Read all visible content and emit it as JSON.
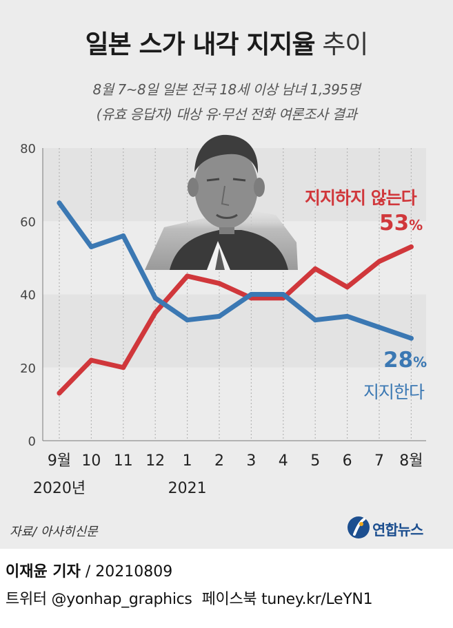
{
  "title": {
    "bold": "일본 스가 내각 지지율",
    "light": "추이"
  },
  "subtitle": {
    "line1": "8월 7~8일 일본 전국 18세 이상 남녀 1,395명",
    "line2": "(유효 응답자) 대상 유·무선 전화 여론조사 결과"
  },
  "labels": {
    "disapprove_name": "지지하지 않는다",
    "disapprove_pct": "53",
    "approve_pct": "28",
    "approve_name": "지지한다",
    "pct_sign": "%"
  },
  "colors": {
    "disapprove": "#d0373b",
    "approve": "#3b78b3",
    "background": "#ececec",
    "band": "#e3e3e3"
  },
  "chart_data": {
    "type": "line",
    "categories": [
      "9월",
      "10",
      "11",
      "12",
      "1",
      "2",
      "3",
      "4",
      "5",
      "6",
      "7",
      "8월"
    ],
    "year_labels": [
      {
        "index": 0,
        "label": "2020년"
      },
      {
        "index": 4,
        "label": "2021"
      }
    ],
    "y_ticks": [
      "0",
      "20",
      "40",
      "60",
      "80"
    ],
    "ylim": [
      0,
      80
    ],
    "grid": "vertical dotted lines at each month, alternating shaded bands",
    "series": [
      {
        "name": "지지하지 않는다",
        "color": "#d0373b",
        "values": [
          13,
          22,
          20,
          35,
          45,
          43,
          39,
          39,
          47,
          42,
          49,
          53
        ]
      },
      {
        "name": "지지한다",
        "color": "#3b78b3",
        "values": [
          65,
          53,
          56,
          39,
          33,
          34,
          40,
          40,
          33,
          34,
          31,
          28
        ]
      }
    ]
  },
  "source": "자료/ 아사히신문",
  "logo": {
    "text": "연합뉴스"
  },
  "credit": {
    "name": "이재윤 기자",
    "date": " / 20210809"
  },
  "social": {
    "twitter": "트위터 @yonhap_graphics",
    "facebook": "페이스북 tuney.kr/LeYN1"
  }
}
